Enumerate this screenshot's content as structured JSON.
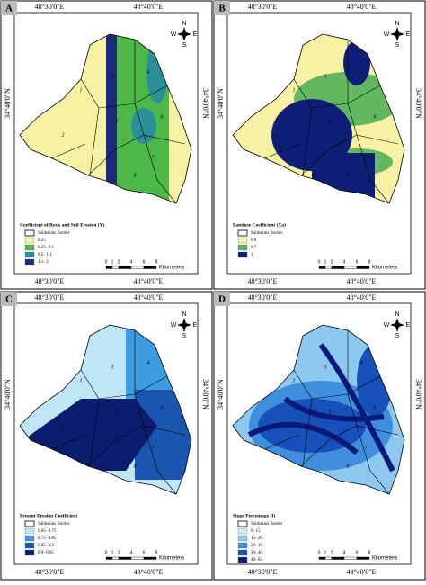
{
  "panels": [
    {
      "label": "A",
      "lon_top": [
        "48°30'0\"E",
        "48°40'0\"E"
      ],
      "lon_bottom": [
        "48°30'0\"E",
        "48°40'0\"E"
      ],
      "lat_left": "34°40'0\"N",
      "lat_right": "34°40'0\"N",
      "compass": [
        "N",
        "W",
        "E",
        "S"
      ],
      "legend": {
        "title": "Coefficient of Rock and Soil Erosion (Y)",
        "border": "Subbasins Border",
        "items": [
          {
            "label": "0.25",
            "color": "#f6f1a3"
          },
          {
            "label": "0.25- 0.5",
            "color": "#4cb848"
          },
          {
            "label": "0.5- 1.1",
            "color": "#2a8f98"
          },
          {
            "label": "1.1- 2",
            "color": "#1b2a7a"
          }
        ]
      },
      "scale": {
        "ticks": [
          "0",
          "1",
          "2",
          "4",
          "6",
          "8"
        ],
        "unit": "Kilometers"
      },
      "subbasins": [
        "1",
        "2",
        "3",
        "4",
        "5",
        "6",
        "7",
        "8"
      ]
    },
    {
      "label": "B",
      "lon_top": [
        "48°30'0\"E",
        "48°40'0\"E"
      ],
      "lon_bottom": [
        "48°30'0\"E",
        "48°40'0\"E"
      ],
      "lat_left": "34°40'0\"N",
      "lat_right": "34°40'0\"N",
      "compass": [
        "N",
        "W",
        "E",
        "S"
      ],
      "legend": {
        "title": "Landuse Coefficient (Xa)",
        "border": "Subbasins Border",
        "items": [
          {
            "label": "0.6",
            "color": "#f6f1a3"
          },
          {
            "label": "0.7",
            "color": "#62b860"
          },
          {
            "label": "1",
            "color": "#0f1f78"
          }
        ]
      },
      "scale": {
        "ticks": [
          "0",
          "1",
          "2",
          "4",
          "6",
          "8"
        ],
        "unit": "Kilometers"
      },
      "subbasins": [
        "1",
        "2",
        "3",
        "4",
        "5",
        "6",
        "7",
        "8"
      ]
    },
    {
      "label": "C",
      "lon_top": [
        "48°30'0\"E",
        "48°40'0\"E"
      ],
      "lon_bottom": [
        "48°30'0\"E",
        "48°40'0\"E"
      ],
      "lat_left": "34°40'0\"N",
      "lat_right": "34°40'0\"N",
      "compass": [
        "N",
        "W",
        "E",
        "S"
      ],
      "legend": {
        "title": "Present Erosion Coefficient",
        "border": "Subbasins Border",
        "items": [
          {
            "label": "0.65- 0.75",
            "color": "#bfe6f7"
          },
          {
            "label": "0.75- 0.85",
            "color": "#3d9be0"
          },
          {
            "label": "0.85- 0.9",
            "color": "#1a56b0"
          },
          {
            "label": "0.9- 0.95",
            "color": "#0c1c6e"
          }
        ]
      },
      "scale": {
        "ticks": [
          "0",
          "1",
          "2",
          "4",
          "6",
          "8"
        ],
        "unit": "Kilometers"
      },
      "subbasins": [
        "1",
        "2",
        "3",
        "4",
        "5",
        "6",
        "7",
        "8"
      ]
    },
    {
      "label": "D",
      "lon_top": [
        "48°30'0\"E",
        "48°40'0\"E"
      ],
      "lon_bottom": [
        "48°30'0\"E",
        "48°40'0\"E"
      ],
      "lat_left": "34°40'0\"N",
      "lat_right": "34°40'0\"N",
      "compass": [
        "N",
        "W",
        "E",
        "S"
      ],
      "legend": {
        "title": "Slope Percentage (I)",
        "border": "Subbasins Border",
        "items": [
          {
            "label": "0- 15",
            "color": "#cfeefc"
          },
          {
            "label": "15- 20",
            "color": "#8cc8f0"
          },
          {
            "label": "20- 30",
            "color": "#3f8fdc"
          },
          {
            "label": "30- 40",
            "color": "#1750b8"
          },
          {
            "label": "40- 65",
            "color": "#0a1a7a"
          }
        ]
      },
      "scale": {
        "ticks": [
          "0",
          "1",
          "2",
          "4",
          "6",
          "8"
        ],
        "unit": "Kilometers"
      },
      "subbasins": [
        "1",
        "2",
        "3",
        "4",
        "5",
        "6",
        "7",
        "8"
      ]
    }
  ]
}
